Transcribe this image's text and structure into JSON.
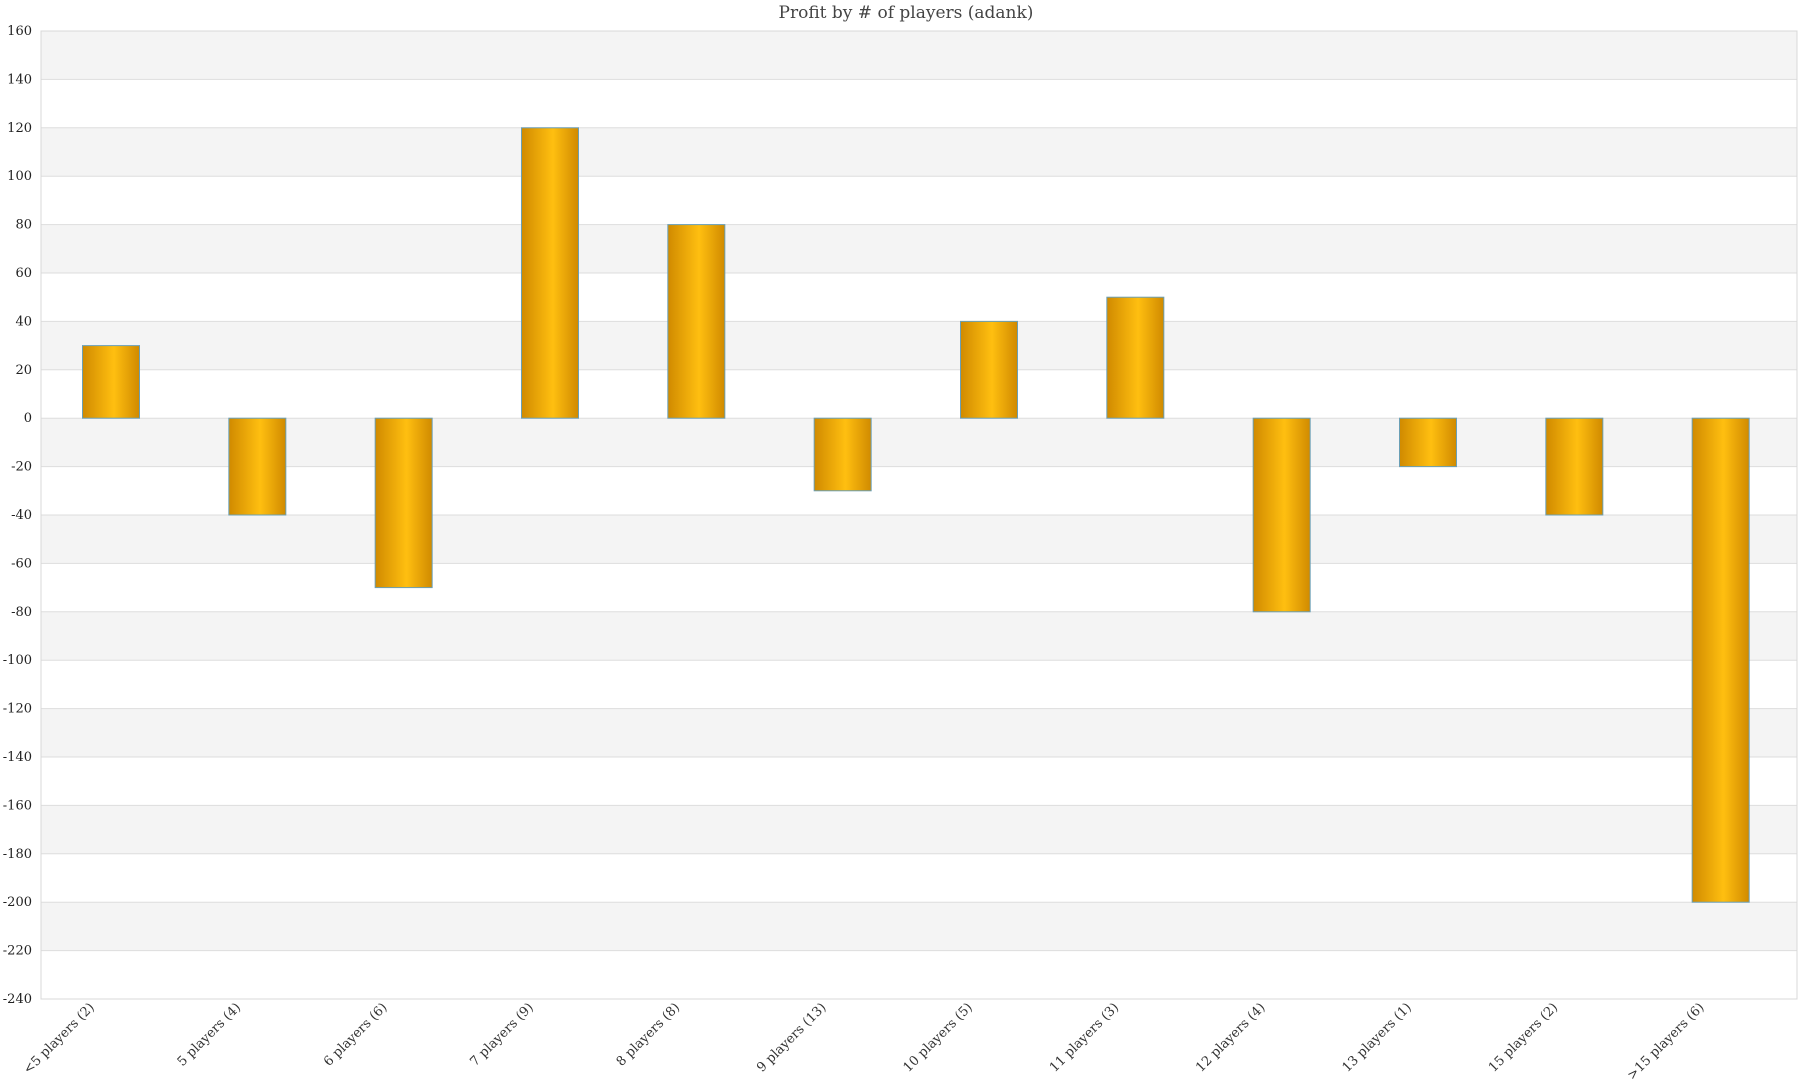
{
  "chart_data": {
    "type": "bar",
    "title": "Profit by # of players  (adank)",
    "xlabel": "",
    "ylabel": "",
    "categories": [
      "<5 players (2)",
      "5 players (4)",
      "6 players (6)",
      "7 players (9)",
      "8 players (8)",
      "9 players (13)",
      "10 players (5)",
      "11 players (3)",
      "12 players (4)",
      "13 players (1)",
      "15 players (2)",
      ">15 players (6)"
    ],
    "values": [
      30,
      -40,
      -70,
      120,
      80,
      -30,
      40,
      50,
      -80,
      -20,
      -40,
      -200
    ],
    "ylim": [
      -240,
      160
    ],
    "yticks": [
      160,
      140,
      120,
      100,
      80,
      60,
      40,
      20,
      0,
      -20,
      -40,
      -60,
      -80,
      -100,
      -120,
      -140,
      -160,
      -180,
      -200,
      -220,
      -240
    ],
    "grid": true,
    "legend": "none",
    "colors": {
      "bar_edge": "#d08a00",
      "bar_center": "#ffbf10",
      "bar_border": "#6a9fb5",
      "band_alt": "#f4f4f4",
      "grid_line": "#dddddd"
    }
  }
}
